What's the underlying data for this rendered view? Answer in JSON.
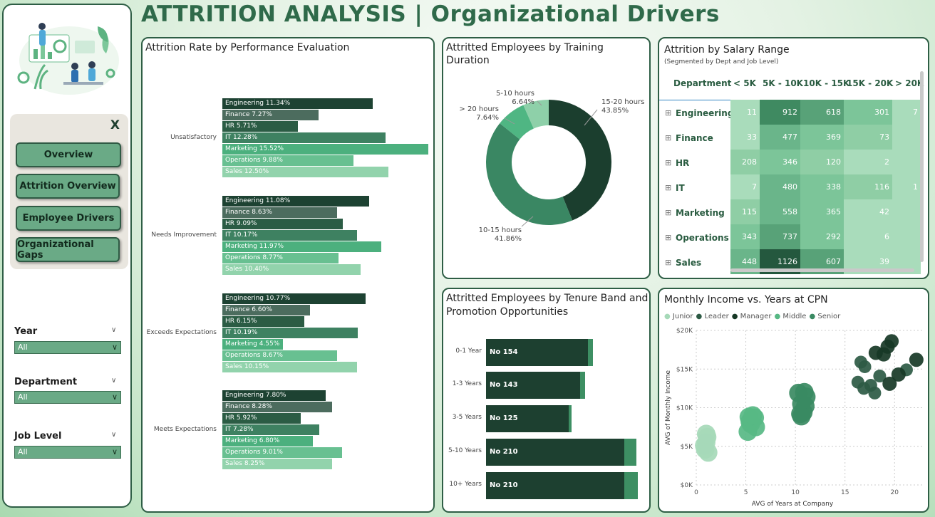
{
  "header": {
    "title": "ATTRITION ANALYSIS | Organizational Drivers"
  },
  "sidebar": {
    "close_label": "X",
    "nav": [
      {
        "label": "Overview"
      },
      {
        "label": "Attrition Overview"
      },
      {
        "label": "Employee Drivers"
      },
      {
        "label": "Organizational Gaps"
      }
    ],
    "filters": [
      {
        "label": "Year",
        "value": "All"
      },
      {
        "label": "Department",
        "value": "All"
      },
      {
        "label": "Job Level",
        "value": "All"
      }
    ]
  },
  "colors": {
    "Engineering": "#1d4232",
    "Finance": "#4c6c5e",
    "HR": "#2b5c44",
    "IT": "#3e8161",
    "Marketing": "#4cb07e",
    "Operations": "#68c091",
    "Sales": "#92d3ac"
  },
  "performance": {
    "title": "Attrition Rate by Performance Evaluation",
    "groups": [
      {
        "name": "Unsatisfactory",
        "items": [
          {
            "dept": "Engineering",
            "label": "Engineering 11.34%",
            "value": 11.34
          },
          {
            "dept": "Finance",
            "label": "Finance 7.27%",
            "value": 7.27
          },
          {
            "dept": "HR",
            "label": "HR 5.71%",
            "value": 5.71
          },
          {
            "dept": "IT",
            "label": "IT 12.28%",
            "value": 12.28
          },
          {
            "dept": "Marketing",
            "label": "Marketing 15.52%",
            "value": 15.52
          },
          {
            "dept": "Operations",
            "label": "Operations 9.88%",
            "value": 9.88
          },
          {
            "dept": "Sales",
            "label": "Sales 12.50%",
            "value": 12.5
          }
        ]
      },
      {
        "name": "Needs Improvement",
        "items": [
          {
            "dept": "Engineering",
            "label": "Engineering 11.08%",
            "value": 11.08
          },
          {
            "dept": "Finance",
            "label": "Finance 8.63%",
            "value": 8.63
          },
          {
            "dept": "HR",
            "label": "HR 9.09%",
            "value": 9.09
          },
          {
            "dept": "IT",
            "label": "IT 10.17%",
            "value": 10.17
          },
          {
            "dept": "Marketing",
            "label": "Marketing 11.97%",
            "value": 11.97
          },
          {
            "dept": "Operations",
            "label": "Operations 8.77%",
            "value": 8.77
          },
          {
            "dept": "Sales",
            "label": "Sales 10.40%",
            "value": 10.4
          }
        ]
      },
      {
        "name": "Exceeds Expectations",
        "items": [
          {
            "dept": "Engineering",
            "label": "Engineering 10.77%",
            "value": 10.77
          },
          {
            "dept": "Finance",
            "label": "Finance 6.60%",
            "value": 6.6
          },
          {
            "dept": "HR",
            "label": "HR 6.15%",
            "value": 6.15
          },
          {
            "dept": "IT",
            "label": "IT 10.19%",
            "value": 10.19
          },
          {
            "dept": "Marketing",
            "label": "Marketing 4.55%",
            "value": 4.55
          },
          {
            "dept": "Operations",
            "label": "Operations 8.67%",
            "value": 8.67
          },
          {
            "dept": "Sales",
            "label": "Sales 10.15%",
            "value": 10.15
          }
        ]
      },
      {
        "name": "Meets Expectations",
        "items": [
          {
            "dept": "Engineering",
            "label": "Engineering 7.80%",
            "value": 7.8
          },
          {
            "dept": "Finance",
            "label": "Finance 8.28%",
            "value": 8.28
          },
          {
            "dept": "HR",
            "label": "HR 5.92%",
            "value": 5.92
          },
          {
            "dept": "IT",
            "label": "IT 7.28%",
            "value": 7.28
          },
          {
            "dept": "Marketing",
            "label": "Marketing 6.80%",
            "value": 6.8
          },
          {
            "dept": "Operations",
            "label": "Operations 9.01%",
            "value": 9.01
          },
          {
            "dept": "Sales",
            "label": "Sales 8.25%",
            "value": 8.25
          }
        ]
      }
    ]
  },
  "training": {
    "title": "Attritted Employees by Training Duration",
    "slices": [
      {
        "label": "15-20 hours",
        "pct": "43.85%",
        "value": 43.85,
        "color": "#1b3e2e"
      },
      {
        "label": "10-15 hours",
        "pct": "41.86%",
        "value": 41.86,
        "color": "#3a8763"
      },
      {
        "label": "> 20 hours",
        "pct": "7.64%",
        "value": 7.64,
        "color": "#4fb683"
      },
      {
        "label": "5-10 hours",
        "pct": "6.64%",
        "value": 6.64,
        "color": "#8ed0a9"
      }
    ]
  },
  "tenure": {
    "title_line1": "Attritted Employees by Tenure Band and",
    "title_line2": "Promotion Opportunities",
    "rows": [
      {
        "band": "0-1 Year",
        "label": "No 154",
        "no": 154,
        "yes": 8
      },
      {
        "band": "1-3 Years",
        "label": "No 143",
        "no": 143,
        "yes": 7
      },
      {
        "band": "3-5 Years",
        "label": "No 125",
        "no": 125,
        "yes": 5
      },
      {
        "band": "5-10 Years",
        "label": "No 210",
        "no": 210,
        "yes": 18
      },
      {
        "band": "10+ Years",
        "label": "No 210",
        "no": 210,
        "yes": 20
      }
    ]
  },
  "salary": {
    "title": "Attrition by Salary Range",
    "subtitle": "(Segmented by Dept and Job Level)",
    "columns": [
      "Department",
      "< 5K",
      "5K - 10K",
      "10K - 15K",
      "15K - 20K",
      "> 20K"
    ],
    "expand_icon": "⊞",
    "rows": [
      {
        "dept": "Engineering",
        "values": [
          "11",
          "912",
          "618",
          "301",
          "7"
        ]
      },
      {
        "dept": "Finance",
        "values": [
          "33",
          "477",
          "369",
          "73",
          ""
        ]
      },
      {
        "dept": "HR",
        "values": [
          "208",
          "346",
          "120",
          "2",
          ""
        ]
      },
      {
        "dept": "IT",
        "values": [
          "7",
          "480",
          "338",
          "116",
          "1"
        ]
      },
      {
        "dept": "Marketing",
        "values": [
          "115",
          "558",
          "365",
          "42",
          ""
        ]
      },
      {
        "dept": "Operations",
        "values": [
          "343",
          "737",
          "292",
          "6",
          ""
        ]
      },
      {
        "dept": "Sales",
        "values": [
          "448",
          "1126",
          "607",
          "39",
          ""
        ]
      }
    ]
  },
  "chart_data": {
    "type": "scatter",
    "title": "Monthly Income vs. Years at CPN",
    "xlabel": "AVG of Years at Company",
    "ylabel": "AVG of Monthly Income",
    "xlim": [
      0,
      23
    ],
    "ylim": [
      0,
      20000
    ],
    "xticks": [
      "0",
      "5",
      "10",
      "15",
      "20"
    ],
    "yticks": [
      "$0K",
      "$5K",
      "$10K",
      "$15K",
      "$20K"
    ],
    "legend": [
      {
        "name": "Junior",
        "color": "#a6d9b8"
      },
      {
        "name": "Leader",
        "color": "#2d5a44"
      },
      {
        "name": "Manager",
        "color": "#173826"
      },
      {
        "name": "Middle",
        "color": "#57b884"
      },
      {
        "name": "Senior",
        "color": "#3a8a62"
      }
    ],
    "series": [
      {
        "name": "Junior",
        "points": [
          [
            0.9,
            4600
          ],
          [
            1.0,
            5500
          ],
          [
            1.1,
            6200
          ],
          [
            0.8,
            5100
          ],
          [
            1.2,
            4200
          ],
          [
            1.0,
            6600
          ]
        ]
      },
      {
        "name": "Middle",
        "points": [
          [
            5.2,
            6900
          ],
          [
            5.5,
            7900
          ],
          [
            5.9,
            8700
          ],
          [
            5.4,
            8200
          ],
          [
            6.0,
            7500
          ],
          [
            5.3,
            8800
          ],
          [
            5.7,
            9000
          ]
        ]
      },
      {
        "name": "Senior",
        "points": [
          [
            10.3,
            11900
          ],
          [
            10.6,
            10500
          ],
          [
            10.8,
            9400
          ],
          [
            11.1,
            11400
          ],
          [
            10.5,
            9200
          ],
          [
            10.9,
            12000
          ],
          [
            11.0,
            10200
          ],
          [
            10.6,
            8900
          ]
        ]
      },
      {
        "name": "Leader",
        "points": [
          [
            16.3,
            13300
          ],
          [
            17.0,
            15300
          ],
          [
            17.6,
            12900
          ],
          [
            16.6,
            15900
          ],
          [
            18.0,
            11900
          ],
          [
            21.2,
            14900
          ],
          [
            18.5,
            14100
          ],
          [
            16.9,
            12500
          ]
        ]
      },
      {
        "name": "Manager",
        "points": [
          [
            18.9,
            16900
          ],
          [
            19.3,
            17900
          ],
          [
            19.7,
            18600
          ],
          [
            20.4,
            14300
          ],
          [
            22.2,
            16200
          ],
          [
            19.5,
            13100
          ],
          [
            18.1,
            17100
          ]
        ]
      }
    ]
  }
}
